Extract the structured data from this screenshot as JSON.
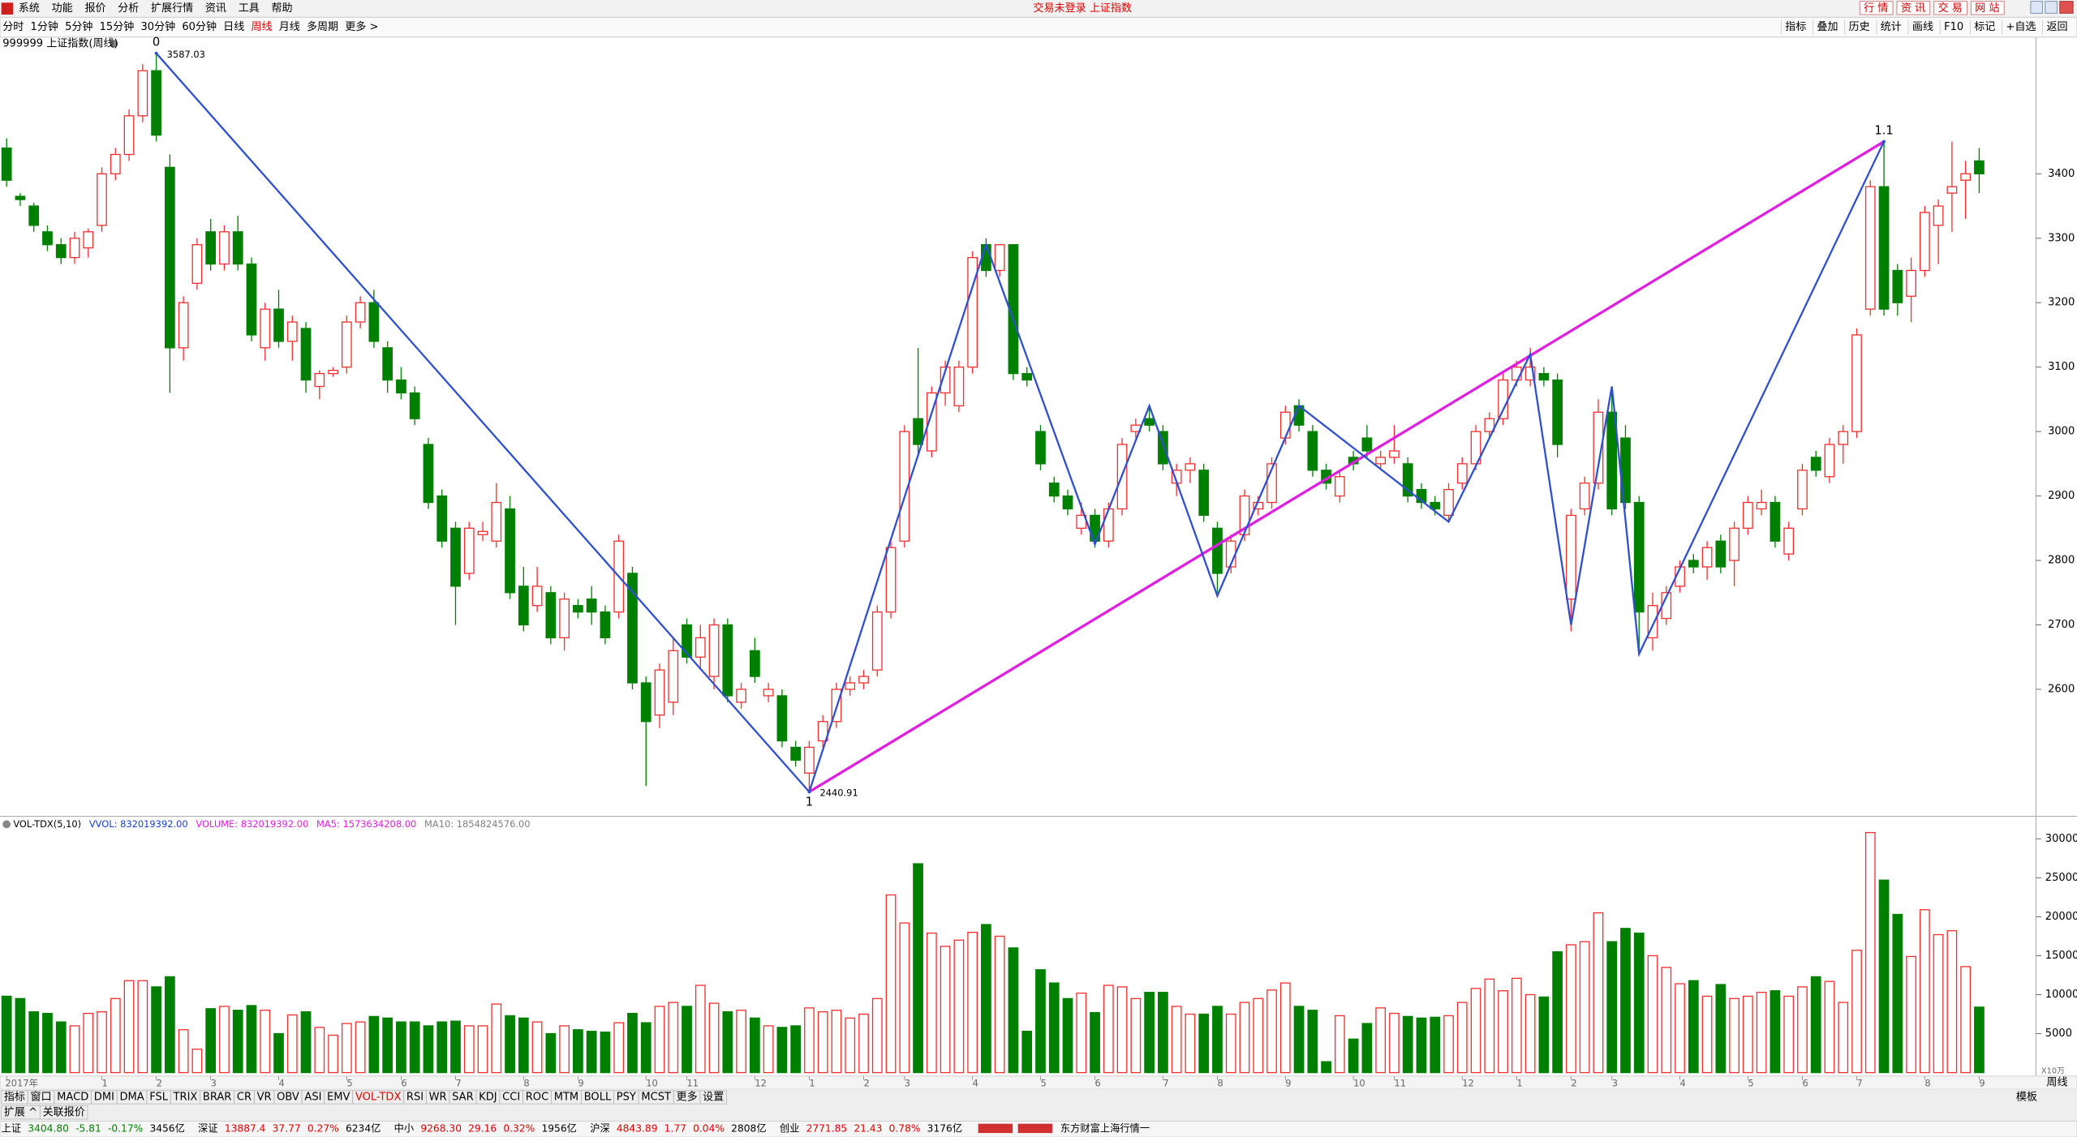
{
  "app": {
    "menu": [
      "系统",
      "功能",
      "报价",
      "分析",
      "扩展行情",
      "资讯",
      "工具",
      "帮助"
    ],
    "title": "交易未登录 上证指数",
    "top_buttons": [
      "行 情",
      "资 讯",
      "交 易",
      "网 站"
    ],
    "periods": [
      "分时",
      "1分钟",
      "5分钟",
      "15分钟",
      "30分钟",
      "60分钟",
      "日线",
      "周线",
      "月线",
      "多周期",
      "更多 >"
    ],
    "active_period_index": 7,
    "tools": [
      "指标",
      "叠加",
      "历史",
      "统计",
      "画线",
      "F10",
      "标记",
      "+自选",
      "返回"
    ],
    "chart_label": "999999 上证指数(周线)",
    "volume_header": [
      {
        "text": "VOL-TDX(5,10)",
        "color": "#000000"
      },
      {
        "text": "VVOL: 832019392.00",
        "color": "#1a3fd0"
      },
      {
        "text": "VOLUME: 832019392.00",
        "color": "#e020e0"
      },
      {
        "text": "MA5: 1573634208.00",
        "color": "#e020e0"
      },
      {
        "text": "MA10: 1854824576.00",
        "color": "#808080"
      }
    ],
    "volume_unit": "X10万",
    "period_tag": "周线",
    "tabs": [
      "指标",
      "窗口",
      "MACD",
      "DMI",
      "DMA",
      "FSL",
      "TRIX",
      "BRAR",
      "CR",
      "VR",
      "OBV",
      "ASI",
      "EMV",
      "VOL-TDX",
      "RSI",
      "WR",
      "SAR",
      "KDJ",
      "CCI",
      "ROC",
      "MTM",
      "BOLL",
      "PSY",
      "MCST",
      "更多",
      "设置"
    ],
    "active_tab_index": 13,
    "template": "模板",
    "sub_tabs": [
      "扩展 ^",
      "关联报价"
    ],
    "status": [
      {
        "name": "上证",
        "price": "3404.80",
        "change": "-5.81",
        "pct": "-0.17%",
        "amount": "3456亿"
      },
      {
        "name": "深证",
        "price": "13887.4",
        "change": "37.77",
        "pct": "0.27%",
        "amount": "6234亿"
      },
      {
        "name": "中小",
        "price": "9268.30",
        "change": "29.16",
        "pct": "0.32%",
        "amount": "1956亿"
      },
      {
        "name": "沪深",
        "price": "4843.89",
        "change": "1.77",
        "pct": "0.04%",
        "amount": "2808亿"
      },
      {
        "name": "创业",
        "price": "2771.85",
        "change": "21.43",
        "pct": "0.78%",
        "amount": "3176亿"
      }
    ],
    "feed": "东方财富上海行情一"
  },
  "chart_data": {
    "type": "candlestick",
    "up_color": "#f03030",
    "down_color": "#008000",
    "categories": [
      "2017年",
      null,
      null,
      null,
      null,
      null,
      null,
      "1",
      null,
      null,
      null,
      "2",
      null,
      null,
      null,
      "3",
      null,
      null,
      null,
      null,
      "4",
      null,
      null,
      null,
      null,
      "5",
      null,
      null,
      null,
      "6",
      null,
      null,
      null,
      "7",
      null,
      null,
      null,
      null,
      "8",
      null,
      null,
      null,
      "9",
      null,
      null,
      null,
      null,
      "10",
      null,
      null,
      "11",
      null,
      null,
      null,
      null,
      "12",
      null,
      null,
      null,
      "1",
      null,
      null,
      null,
      "2",
      null,
      null,
      "3",
      null,
      null,
      null,
      null,
      "4",
      null,
      null,
      null,
      null,
      "5",
      null,
      null,
      null,
      "6",
      null,
      null,
      null,
      null,
      "7",
      null,
      null,
      null,
      "8",
      null,
      null,
      null,
      null,
      "9",
      null,
      null,
      null,
      null,
      "10",
      null,
      null,
      "11",
      null,
      null,
      null,
      null,
      "12",
      null,
      null,
      null,
      "1",
      null,
      null,
      null,
      "2",
      null,
      null,
      "3",
      null,
      null,
      null,
      null,
      "4",
      null,
      null,
      null,
      null,
      "5",
      null,
      null,
      null,
      "6",
      null,
      null,
      null,
      "7",
      null,
      null,
      null,
      null,
      "8",
      null,
      null,
      null,
      "9"
    ],
    "ohlc": [
      [
        3440,
        3455,
        3380,
        3390
      ],
      [
        3365,
        3370,
        3350,
        3360
      ],
      [
        3350,
        3355,
        3310,
        3320
      ],
      [
        3310,
        3320,
        3280,
        3290
      ],
      [
        3290,
        3300,
        3260,
        3270
      ],
      [
        3270,
        3310,
        3260,
        3300
      ],
      [
        3285,
        3315,
        3270,
        3310
      ],
      [
        3320,
        3410,
        3310,
        3400
      ],
      [
        3400,
        3440,
        3390,
        3430
      ],
      [
        3430,
        3500,
        3420,
        3490
      ],
      [
        3490,
        3570,
        3480,
        3560
      ],
      [
        3560,
        3587.03,
        3450,
        3460
      ],
      [
        3410,
        3430,
        3060,
        3130
      ],
      [
        3130,
        3210,
        3110,
        3200
      ],
      [
        3230,
        3300,
        3220,
        3290
      ],
      [
        3310,
        3330,
        3250,
        3260
      ],
      [
        3260,
        3320,
        3250,
        3310
      ],
      [
        3310,
        3335,
        3250,
        3260
      ],
      [
        3260,
        3270,
        3140,
        3150
      ],
      [
        3130,
        3200,
        3110,
        3190
      ],
      [
        3190,
        3220,
        3130,
        3140
      ],
      [
        3140,
        3180,
        3110,
        3170
      ],
      [
        3160,
        3170,
        3060,
        3080
      ],
      [
        3070,
        3095,
        3050,
        3090
      ],
      [
        3090,
        3100,
        3085,
        3095
      ],
      [
        3100,
        3180,
        3090,
        3170
      ],
      [
        3170,
        3210,
        3160,
        3200
      ],
      [
        3200,
        3220,
        3130,
        3140
      ],
      [
        3130,
        3140,
        3060,
        3080
      ],
      [
        3080,
        3100,
        3050,
        3060
      ],
      [
        3060,
        3070,
        3010,
        3020
      ],
      [
        2980,
        2990,
        2880,
        2890
      ],
      [
        2900,
        2910,
        2820,
        2830
      ],
      [
        2850,
        2860,
        2700,
        2760
      ],
      [
        2780,
        2860,
        2770,
        2850
      ],
      [
        2840,
        2860,
        2830,
        2845
      ],
      [
        2830,
        2920,
        2820,
        2890
      ],
      [
        2880,
        2900,
        2740,
        2750
      ],
      [
        2760,
        2790,
        2690,
        2700
      ],
      [
        2730,
        2790,
        2720,
        2760
      ],
      [
        2750,
        2760,
        2670,
        2680
      ],
      [
        2680,
        2750,
        2660,
        2740
      ],
      [
        2730,
        2740,
        2710,
        2720
      ],
      [
        2740,
        2760,
        2700,
        2720
      ],
      [
        2720,
        2730,
        2670,
        2680
      ],
      [
        2720,
        2840,
        2710,
        2830
      ],
      [
        2780,
        2790,
        2600,
        2610
      ],
      [
        2610,
        2620,
        2450,
        2550
      ],
      [
        2560,
        2640,
        2540,
        2630
      ],
      [
        2580,
        2680,
        2560,
        2660
      ],
      [
        2700,
        2710,
        2640,
        2650
      ],
      [
        2650,
        2700,
        2630,
        2680
      ],
      [
        2620,
        2710,
        2600,
        2700
      ],
      [
        2700,
        2710,
        2580,
        2590
      ],
      [
        2580,
        2610,
        2570,
        2600
      ],
      [
        2660,
        2680,
        2610,
        2620
      ],
      [
        2590,
        2610,
        2580,
        2600
      ],
      [
        2590,
        2600,
        2510,
        2520
      ],
      [
        2510,
        2520,
        2480,
        2490
      ],
      [
        2470,
        2520,
        2440.91,
        2510
      ],
      [
        2520,
        2560,
        2510,
        2550
      ],
      [
        2550,
        2610,
        2540,
        2600
      ],
      [
        2600,
        2620,
        2590,
        2610
      ],
      [
        2610,
        2630,
        2600,
        2620
      ],
      [
        2630,
        2730,
        2620,
        2720
      ],
      [
        2720,
        2830,
        2710,
        2820
      ],
      [
        2830,
        3010,
        2820,
        3000
      ],
      [
        3020,
        3130,
        2960,
        2980
      ],
      [
        2970,
        3070,
        2960,
        3060
      ],
      [
        3060,
        3110,
        3040,
        3100
      ],
      [
        3040,
        3110,
        3030,
        3100
      ],
      [
        3100,
        3280,
        3090,
        3270
      ],
      [
        3290,
        3300,
        3240,
        3250
      ],
      [
        3250,
        3290,
        3240,
        3290
      ],
      [
        3290,
        3290,
        3080,
        3090
      ],
      [
        3090,
        3100,
        3070,
        3080
      ],
      [
        3000,
        3010,
        2940,
        2950
      ],
      [
        2920,
        2930,
        2890,
        2900
      ],
      [
        2900,
        2910,
        2870,
        2880
      ],
      [
        2850,
        2890,
        2840,
        2870
      ],
      [
        2870,
        2880,
        2820,
        2830
      ],
      [
        2830,
        2890,
        2820,
        2880
      ],
      [
        2880,
        2990,
        2870,
        2980
      ],
      [
        3000,
        3020,
        2990,
        3010
      ],
      [
        3020,
        3040,
        3000,
        3010
      ],
      [
        3000,
        3010,
        2940,
        2950
      ],
      [
        2920,
        2950,
        2900,
        2940
      ],
      [
        2940,
        2960,
        2920,
        2950
      ],
      [
        2940,
        2950,
        2860,
        2870
      ],
      [
        2850,
        2860,
        2750,
        2780
      ],
      [
        2790,
        2840,
        2780,
        2830
      ],
      [
        2840,
        2910,
        2830,
        2900
      ],
      [
        2880,
        2900,
        2870,
        2890
      ],
      [
        2890,
        2960,
        2880,
        2950
      ],
      [
        2990,
        3040,
        2980,
        3030
      ],
      [
        3040,
        3050,
        3000,
        3010
      ],
      [
        3000,
        3010,
        2930,
        2940
      ],
      [
        2940,
        2950,
        2910,
        2920
      ],
      [
        2900,
        2940,
        2890,
        2930
      ],
      [
        2960,
        2970,
        2940,
        2950
      ],
      [
        2990,
        3010,
        2960,
        2970
      ],
      [
        2950,
        2970,
        2940,
        2960
      ],
      [
        2960,
        3010,
        2950,
        2970
      ],
      [
        2950,
        2960,
        2890,
        2900
      ],
      [
        2910,
        2920,
        2880,
        2890
      ],
      [
        2890,
        2900,
        2870,
        2880
      ],
      [
        2870,
        2920,
        2860,
        2910
      ],
      [
        2920,
        2960,
        2910,
        2950
      ],
      [
        2950,
        3010,
        2940,
        3000
      ],
      [
        3000,
        3030,
        2990,
        3020
      ],
      [
        3020,
        3090,
        3010,
        3080
      ],
      [
        3080,
        3110,
        3070,
        3100
      ],
      [
        3080,
        3130,
        3070,
        3100
      ],
      [
        3090,
        3100,
        3070,
        3080
      ],
      [
        3080,
        3090,
        2960,
        2980
      ],
      [
        2740,
        2880,
        2690,
        2870
      ],
      [
        2880,
        2930,
        2870,
        2920
      ],
      [
        2920,
        3050,
        2910,
        3030
      ],
      [
        3030,
        3070,
        2870,
        2880
      ],
      [
        2990,
        3010,
        2880,
        2890
      ],
      [
        2890,
        2900,
        2660,
        2720
      ],
      [
        2680,
        2750,
        2660,
        2730
      ],
      [
        2710,
        2760,
        2700,
        2750
      ],
      [
        2760,
        2800,
        2750,
        2790
      ],
      [
        2800,
        2810,
        2780,
        2790
      ],
      [
        2790,
        2830,
        2770,
        2820
      ],
      [
        2830,
        2840,
        2780,
        2790
      ],
      [
        2800,
        2860,
        2760,
        2850
      ],
      [
        2850,
        2900,
        2840,
        2890
      ],
      [
        2880,
        2910,
        2870,
        2890
      ],
      [
        2890,
        2900,
        2820,
        2830
      ],
      [
        2810,
        2860,
        2800,
        2850
      ],
      [
        2880,
        2950,
        2870,
        2940
      ],
      [
        2960,
        2970,
        2930,
        2940
      ],
      [
        2930,
        2990,
        2920,
        2980
      ],
      [
        2980,
        3010,
        2950,
        3000
      ],
      [
        3000,
        3160,
        2990,
        3150
      ],
      [
        3190,
        3390,
        3180,
        3380
      ],
      [
        3380,
        3450,
        3180,
        3190
      ],
      [
        3250,
        3260,
        3180,
        3200
      ],
      [
        3210,
        3270,
        3170,
        3250
      ],
      [
        3250,
        3350,
        3240,
        3340
      ],
      [
        3320,
        3360,
        3260,
        3350
      ],
      [
        3370,
        3450,
        3310,
        3380
      ],
      [
        3390,
        3420,
        3330,
        3400
      ],
      [
        3420,
        3440,
        3370,
        3400
      ]
    ],
    "ylim": [
      2405,
      3608
    ],
    "yticks": [
      2600,
      2700,
      2800,
      2900,
      3000,
      3100,
      3200,
      3300,
      3400
    ],
    "wave_points": [
      {
        "label": "0",
        "x": 11,
        "y": 3587.03
      },
      {
        "label": "1",
        "x": 59,
        "y": 2440.91
      },
      {
        "label": "1.1",
        "x": 138,
        "y": 3450
      }
    ],
    "trend_lines": [
      {
        "color": "#2f4fd0",
        "points": [
          [
            11,
            3587.03
          ],
          [
            59,
            2440.91
          ]
        ]
      },
      {
        "color": "#e020e0",
        "points": [
          [
            59,
            2440.91
          ],
          [
            138,
            3450
          ]
        ]
      },
      {
        "color": "#2f4fd0",
        "points": [
          [
            59,
            2440.91
          ],
          [
            72,
            3290
          ],
          [
            80,
            2825
          ],
          [
            84,
            3040
          ],
          [
            89,
            2745
          ],
          [
            95,
            3040
          ],
          [
            106,
            2860
          ],
          [
            112,
            3120
          ],
          [
            115,
            2700
          ],
          [
            118,
            3070
          ],
          [
            120,
            2655
          ],
          [
            138,
            3450
          ]
        ]
      }
    ],
    "volume": {
      "type": "bar",
      "values": [
        9800,
        9500,
        7800,
        7600,
        6500,
        6000,
        7600,
        7800,
        9500,
        11800,
        11800,
        11000,
        12300,
        5500,
        3000,
        8200,
        8500,
        8000,
        8600,
        8000,
        5000,
        7400,
        7800,
        5800,
        4800,
        6300,
        6500,
        7200,
        7000,
        6500,
        6500,
        6000,
        6500,
        6600,
        6000,
        6000,
        8800,
        7300,
        7000,
        6500,
        5000,
        6000,
        5500,
        5300,
        5200,
        6400,
        7600,
        6400,
        8500,
        9000,
        8500,
        11200,
        8900,
        7800,
        8000,
        7000,
        6000,
        5800,
        6000,
        8300,
        7800,
        8000,
        7000,
        7500,
        9500,
        22800,
        19200,
        26800,
        17900,
        16200,
        17000,
        18000,
        19000,
        17500,
        16000,
        5300,
        13200,
        11500,
        9500,
        10200,
        7700,
        11200,
        11000,
        9500,
        10300,
        10300,
        8500,
        7500,
        7500,
        8500,
        7500,
        9000,
        9500,
        10600,
        11500,
        8500,
        8000,
        1400,
        7300,
        4300,
        6300,
        8300,
        7600,
        7200,
        7000,
        7100,
        7300,
        9000,
        10800,
        12000,
        10500,
        12100,
        10000,
        9700,
        15500,
        16400,
        16800,
        20500,
        16800,
        18500,
        17900,
        15000,
        13500,
        11400,
        11800,
        9800,
        11300,
        9500,
        9800,
        10300,
        10500,
        9800,
        11000,
        12300,
        11700,
        9000,
        15700,
        30800,
        24700,
        20300,
        14900,
        20900,
        17700,
        18200,
        13600,
        8400
      ],
      "ylim": [
        0,
        32550
      ],
      "yticks": [
        5000,
        10000,
        15000,
        20000,
        25000,
        30000
      ]
    }
  }
}
